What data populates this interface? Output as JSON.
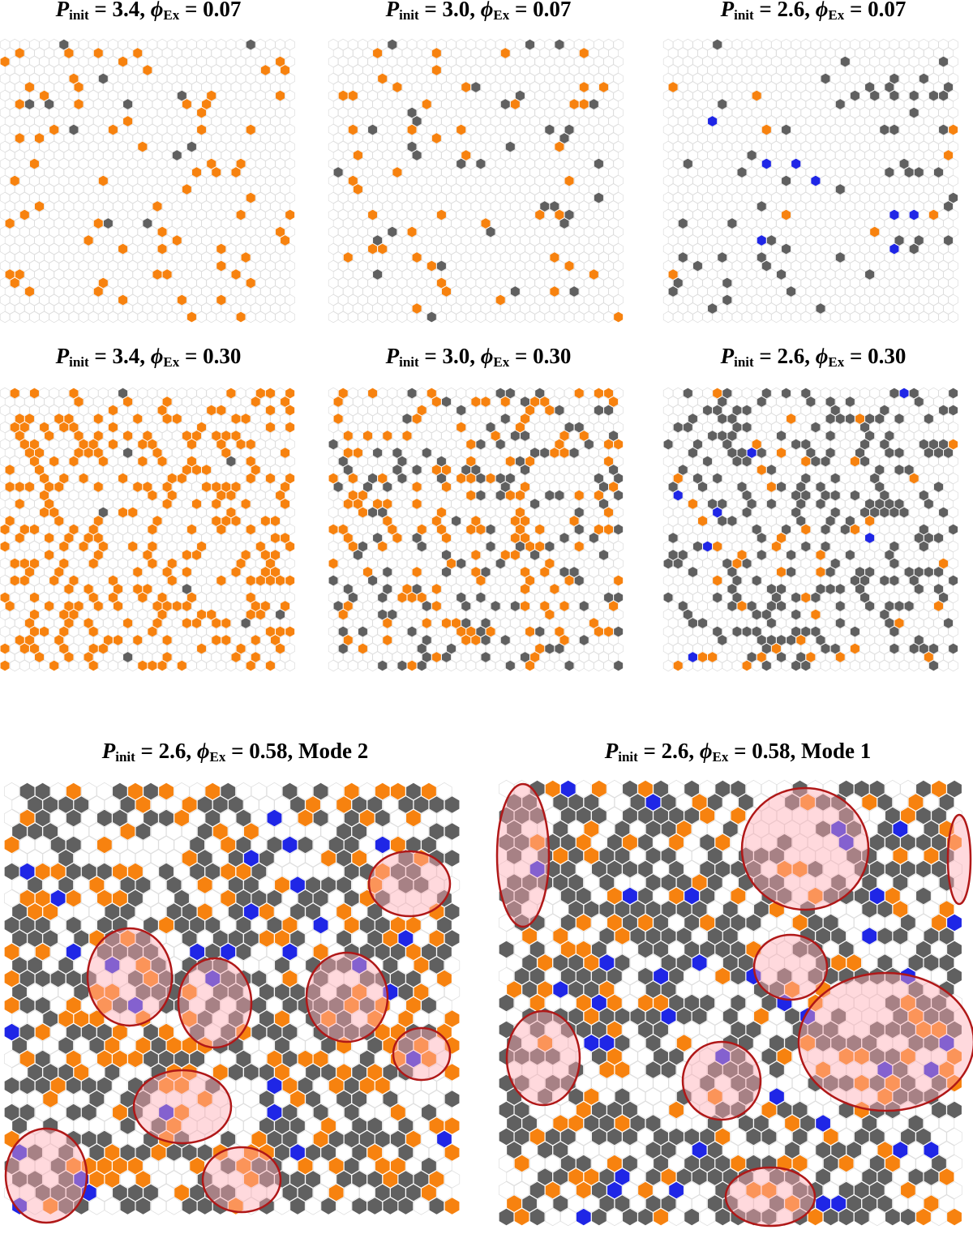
{
  "panels": [
    {
      "title": {
        "p": "P",
        "p_sub": "init",
        "p_text": " = 3.4, ",
        "phi": "ϕ",
        "phi_sub": "Ex",
        "phi_text": " = 0.07"
      }
    },
    {
      "title": {
        "p": "P",
        "p_sub": "init",
        "p_text": " = 3.0, ",
        "phi": "ϕ",
        "phi_sub": "Ex",
        "phi_text": " = 0.07"
      }
    },
    {
      "title": {
        "p": "P",
        "p_sub": "init",
        "p_text": " = 2.6, ",
        "phi": "ϕ",
        "phi_sub": "Ex",
        "phi_text": " = 0.07"
      }
    },
    {
      "title": {
        "p": "P",
        "p_sub": "init",
        "p_text": " = 3.4, ",
        "phi": "ϕ",
        "phi_sub": "Ex",
        "phi_text": " = 0.30"
      }
    },
    {
      "title": {
        "p": "P",
        "p_sub": "init",
        "p_text": " = 3.0, ",
        "phi": "ϕ",
        "phi_sub": "Ex",
        "phi_text": " = 0.30"
      }
    },
    {
      "title": {
        "p": "P",
        "p_sub": "init",
        "p_text": " = 2.6, ",
        "phi": "ϕ",
        "phi_sub": "Ex",
        "phi_text": " = 0.30"
      }
    },
    {
      "title": {
        "p": "P",
        "p_sub": "init",
        "p_text": " = 2.6, ",
        "phi": "ϕ",
        "phi_sub": "Ex",
        "phi_text": " = 0.58, Mode 2"
      }
    },
    {
      "title": {
        "p": "P",
        "p_sub": "init",
        "p_text": " = 2.6, ",
        "phi": "ϕ",
        "phi_sub": "Ex",
        "phi_text": " = 0.58, Mode 1"
      }
    }
  ]
}
